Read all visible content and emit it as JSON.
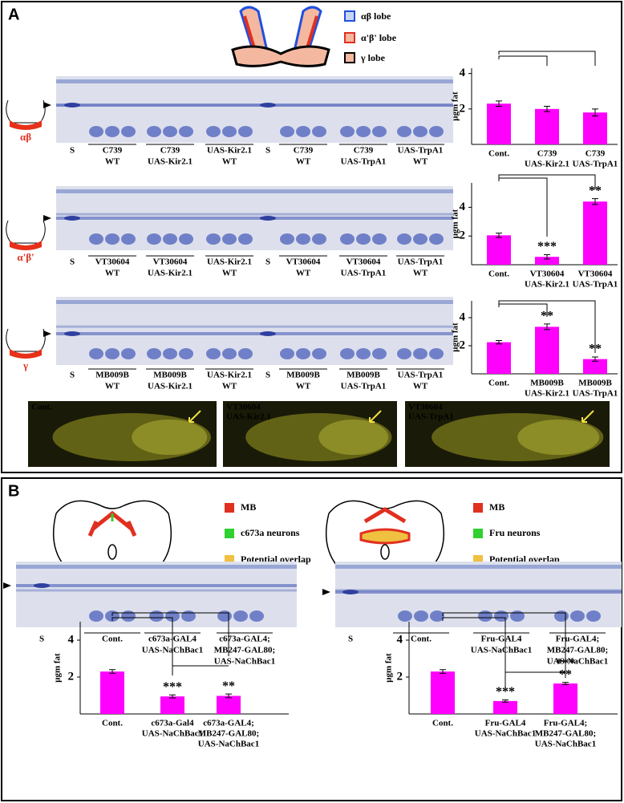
{
  "panel_a": {
    "label": "A",
    "legend": [
      "αβ lobe",
      "α'β' lobe",
      "γ lobe"
    ],
    "rows": [
      {
        "lobe": "αβ",
        "lanes": [
          [
            "S"
          ],
          [
            "C739",
            "WT"
          ],
          [
            "C739",
            "UAS-Kir2.1"
          ],
          [
            "UAS-Kir2.1",
            "WT"
          ],
          [
            "S"
          ],
          [
            "C739",
            "WT"
          ],
          [
            "C739",
            "UAS-TrpA1"
          ],
          [
            "UAS-TrpA1",
            "WT"
          ]
        ]
      },
      {
        "lobe": "α'β'",
        "lanes": [
          [
            "S"
          ],
          [
            "VT30604",
            "WT"
          ],
          [
            "VT30604",
            "UAS-Kir2.1"
          ],
          [
            "UAS-Kir2.1",
            "WT"
          ],
          [
            "S"
          ],
          [
            "VT30604",
            "WT"
          ],
          [
            "VT30604",
            "UAS-TrpA1"
          ],
          [
            "UAS-TrpA1",
            "WT"
          ]
        ]
      },
      {
        "lobe": "γ",
        "lanes": [
          [
            "S"
          ],
          [
            "MB009B",
            "WT"
          ],
          [
            "MB009B",
            "UAS-Kir2.1"
          ],
          [
            "UAS-Kir2.1",
            "WT"
          ],
          [
            "S"
          ],
          [
            "MB009B",
            "WT"
          ],
          [
            "MB009B",
            "UAS-TrpA1"
          ],
          [
            "UAS-TrpA1",
            "WT"
          ]
        ]
      }
    ],
    "images": [
      [
        "Cont."
      ],
      [
        "VT30604",
        "UAS-Kir2.1"
      ],
      [
        "VT30604",
        "UAS-TrpA1"
      ]
    ]
  },
  "panel_b": {
    "label": "B",
    "left": {
      "legend": [
        "MB",
        "c673a neurons",
        "Potential overlap"
      ],
      "lanes": [
        [
          "S"
        ],
        [
          "Cont."
        ],
        [
          "c673a-GAL4",
          "UAS-NaChBac1"
        ],
        [
          "c673a-GAL4;",
          "MB247-GAL80;",
          "UAS-NaChBac1"
        ]
      ]
    },
    "right": {
      "legend": [
        "MB",
        "Fru neurons",
        "Potential overlap"
      ],
      "lanes": [
        [
          "S"
        ],
        [
          "Cont."
        ],
        [
          "Fru-GAL4",
          "UAS-NaChBac1"
        ],
        [
          "Fru-GAL4;",
          "MB247-GAL80;",
          "UAS-NaChBac1"
        ]
      ]
    }
  },
  "chart_data": [
    {
      "type": "bar",
      "y_label": "μgm fat",
      "categories": [
        [
          "Cont."
        ],
        [
          "C739",
          "UAS-Kir2.1"
        ],
        [
          "C739",
          "UAS-TrpA1"
        ]
      ],
      "values": [
        2.3,
        2.0,
        1.8
      ],
      "errors": [
        0.15,
        0.15,
        0.2
      ],
      "significance": [
        null,
        null,
        null
      ],
      "color": "#ff00ff",
      "ylim": [
        0,
        4.3
      ],
      "yticks": [
        2,
        4
      ]
    },
    {
      "type": "bar",
      "y_label": "μgm fat",
      "categories": [
        [
          "Cont."
        ],
        [
          "VT30604",
          "UAS-Kir2.1"
        ],
        [
          "VT30604",
          "UAS-TrpA1"
        ]
      ],
      "values": [
        2.05,
        0.55,
        4.4
      ],
      "errors": [
        0.15,
        0.15,
        0.2
      ],
      "significance": [
        null,
        "***",
        "**"
      ],
      "color": "#ff00ff",
      "ylim": [
        0,
        5.7
      ],
      "yticks": [
        2,
        4
      ]
    },
    {
      "type": "bar",
      "y_label": "μgm fat",
      "categories": [
        [
          "Cont."
        ],
        [
          "MB009B",
          "UAS-Kir2.1"
        ],
        [
          "MB009B",
          "UAS-TrpA1"
        ]
      ],
      "values": [
        2.25,
        3.35,
        1.05
      ],
      "errors": [
        0.12,
        0.2,
        0.15
      ],
      "significance": [
        null,
        "**",
        "**"
      ],
      "color": "#ff00ff",
      "ylim": [
        0,
        5.2
      ],
      "yticks": [
        2,
        4
      ]
    },
    {
      "type": "bar",
      "y_label": "μgm fat",
      "categories": [
        [
          "Cont."
        ],
        [
          "c673a-Gal4",
          "UAS-NaChBac1"
        ],
        [
          "c673a-GAL4;",
          "MB247-GAL80;",
          "UAS-NaChBac1"
        ]
      ],
      "values": [
        2.3,
        0.95,
        0.98
      ],
      "errors": [
        0.1,
        0.08,
        0.1
      ],
      "significance": [
        null,
        "***",
        "**"
      ],
      "color": "#ff00ff",
      "ylim": [
        0,
        5
      ],
      "yticks": [
        2,
        4
      ]
    },
    {
      "type": "bar",
      "y_label": "μgm fat",
      "categories": [
        [
          "Cont."
        ],
        [
          "Fru-GAL4",
          "UAS-NaChBac1"
        ],
        [
          "Fru-GAL4;",
          "MB247-GAL80;",
          "UAS-NaChBac1"
        ]
      ],
      "values": [
        2.3,
        0.7,
        1.65
      ],
      "errors": [
        0.1,
        0.06,
        0.06
      ],
      "significance": [
        null,
        "***",
        "**"
      ],
      "comparison_labels": [
        "***"
      ],
      "color": "#ff00ff",
      "ylim": [
        0,
        5
      ],
      "yticks": [
        2,
        4
      ]
    }
  ]
}
